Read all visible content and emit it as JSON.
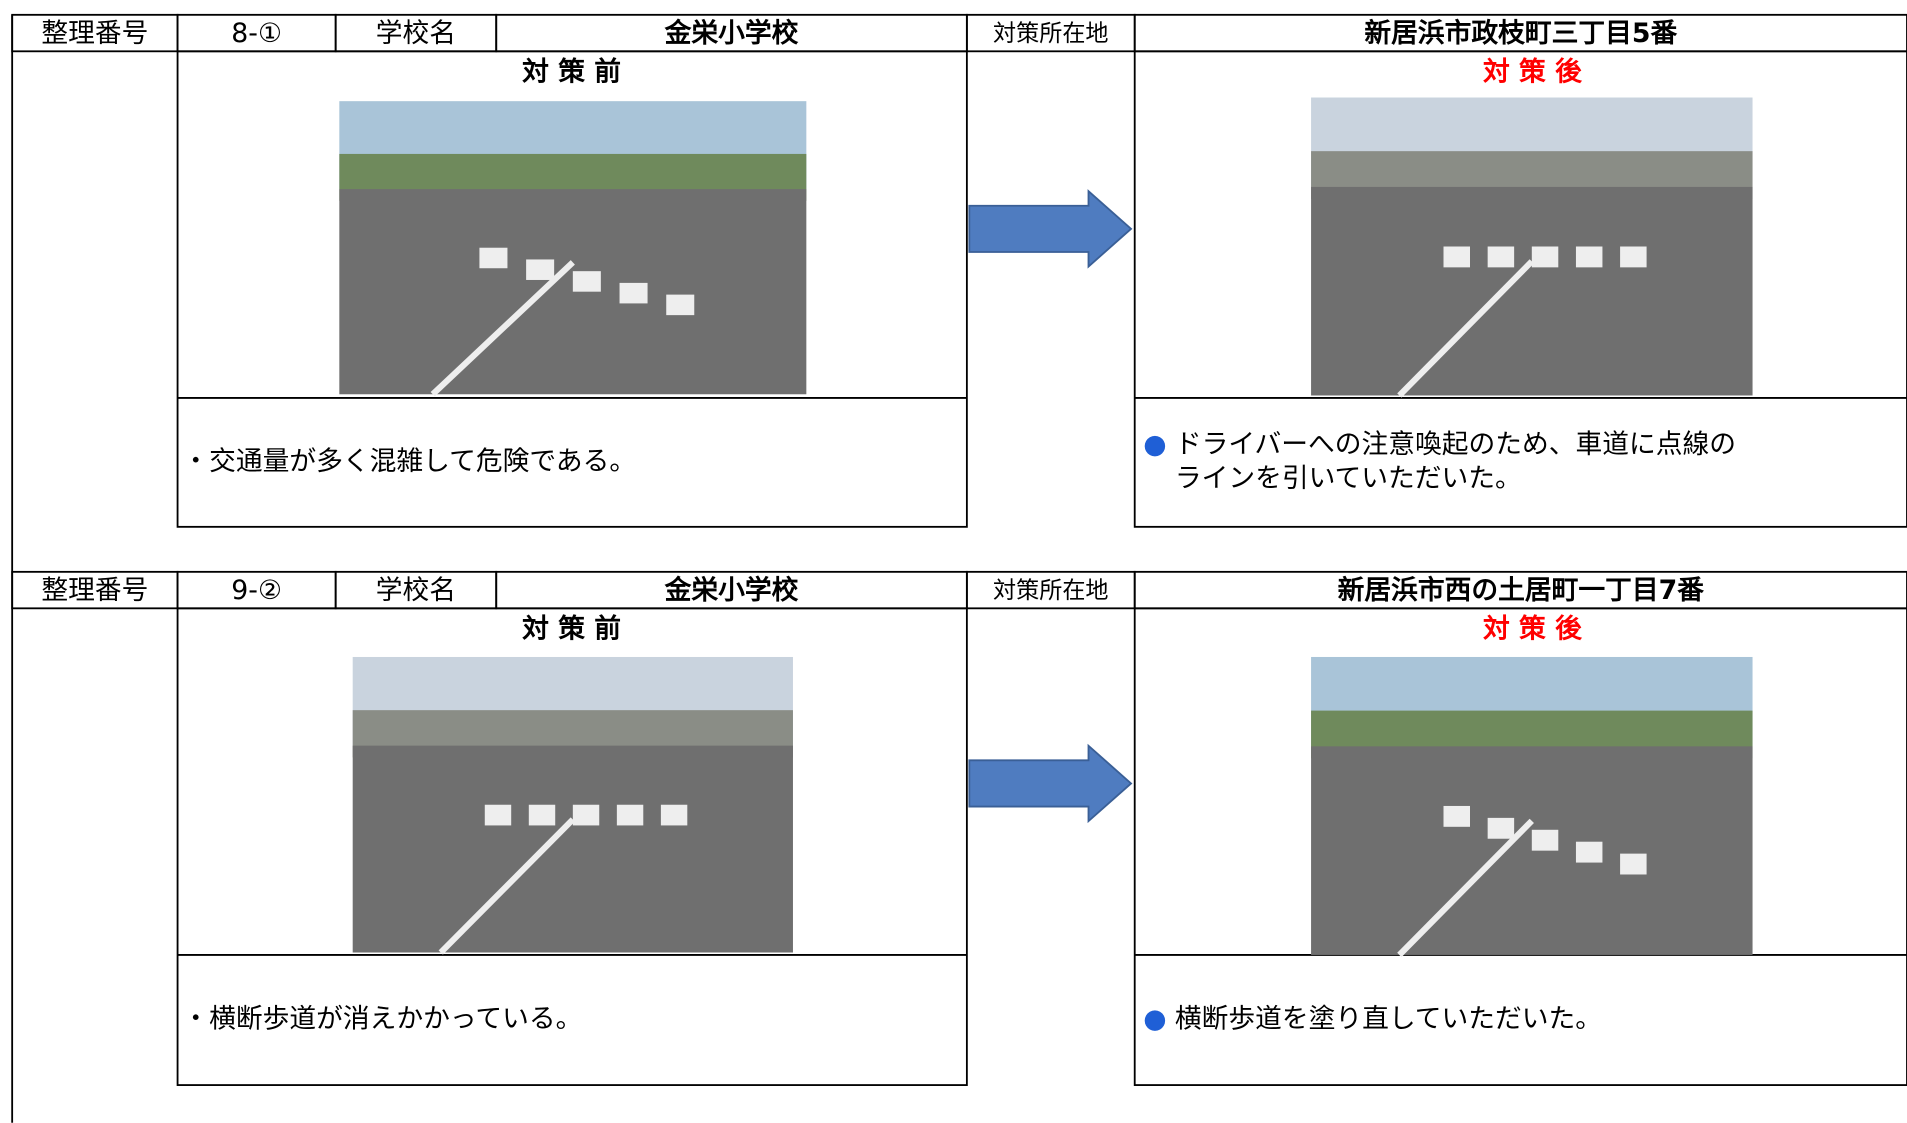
{
  "blocks": [
    {
      "label_no": "整理番号",
      "no": "8-①",
      "label_school": "学校名",
      "school": "金栄小学校",
      "label_place": "対策所在地",
      "place": "新居浜市政枝町三丁目5番",
      "before": {
        "title": "対 策 前",
        "text": "・交通量が多く混雑して危険である。"
      },
      "after": {
        "title": "対 策 後",
        "bullet": "●",
        "lines": [
          "ドライバーへの注意喚起のため、車道に点線の",
          "ラインを引いていただいた。"
        ]
      }
    },
    {
      "label_no": "整理番号",
      "no": "9-②",
      "label_school": "学校名",
      "school": "金栄小学校",
      "label_place": "対策所在地",
      "place": "新居浜市西の土居町一丁目7番",
      "before": {
        "title": "対 策 前",
        "text": "・横断歩道が消えかかっている。"
      },
      "after": {
        "title": "対 策 後",
        "bullet": "●",
        "lines": [
          "横断歩道を塗り直していただいた。"
        ]
      }
    }
  ]
}
